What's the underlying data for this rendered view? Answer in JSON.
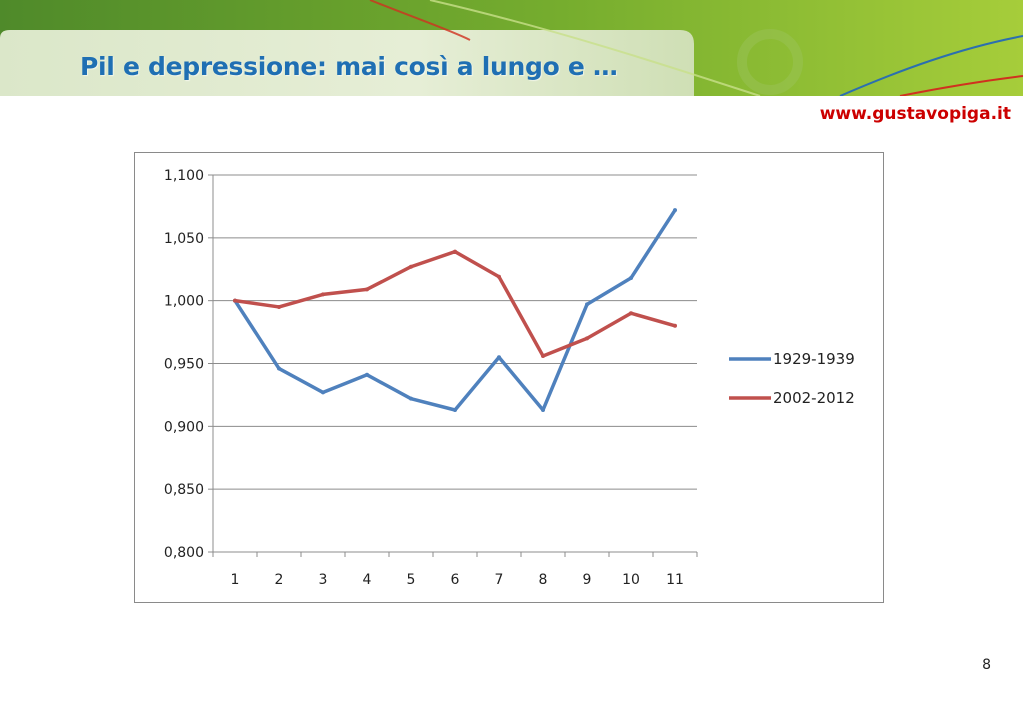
{
  "slide": {
    "title": "Pil e depressione: mai così a lungo e …",
    "website": "www.gustavopiga.it",
    "page_number": "8"
  },
  "colors": {
    "header_green_dark": "#5f9a2c",
    "header_green_light": "#a9cf3a",
    "title_blue": "#1f6fb3",
    "website_red": "#cc0000"
  },
  "chart_data": {
    "type": "line",
    "title": "",
    "xlabel": "",
    "ylabel": "",
    "x": [
      1,
      2,
      3,
      4,
      5,
      6,
      7,
      8,
      9,
      10,
      11
    ],
    "x_tick_labels": [
      "1",
      "2",
      "3",
      "4",
      "5",
      "6",
      "7",
      "8",
      "9",
      "10",
      "11"
    ],
    "ylim": [
      0.8,
      1.1
    ],
    "y_ticks": [
      0.8,
      0.85,
      0.9,
      0.95,
      1.0,
      1.05,
      1.1
    ],
    "y_tick_labels": [
      "0,800",
      "0,850",
      "0,900",
      "0,950",
      "1,000",
      "1,050",
      "1,100"
    ],
    "grid": "horizontal",
    "legend_position": "right",
    "series": [
      {
        "name": "1929-1939",
        "color": "#4f81bd",
        "values": [
          1.0,
          0.946,
          0.927,
          0.941,
          0.922,
          0.913,
          0.955,
          0.913,
          0.997,
          1.018,
          1.072
        ]
      },
      {
        "name": "2002-2012",
        "color": "#c0504d",
        "values": [
          1.0,
          0.995,
          1.005,
          1.009,
          1.027,
          1.039,
          1.019,
          0.956,
          0.97,
          0.99,
          0.98
        ]
      }
    ]
  }
}
